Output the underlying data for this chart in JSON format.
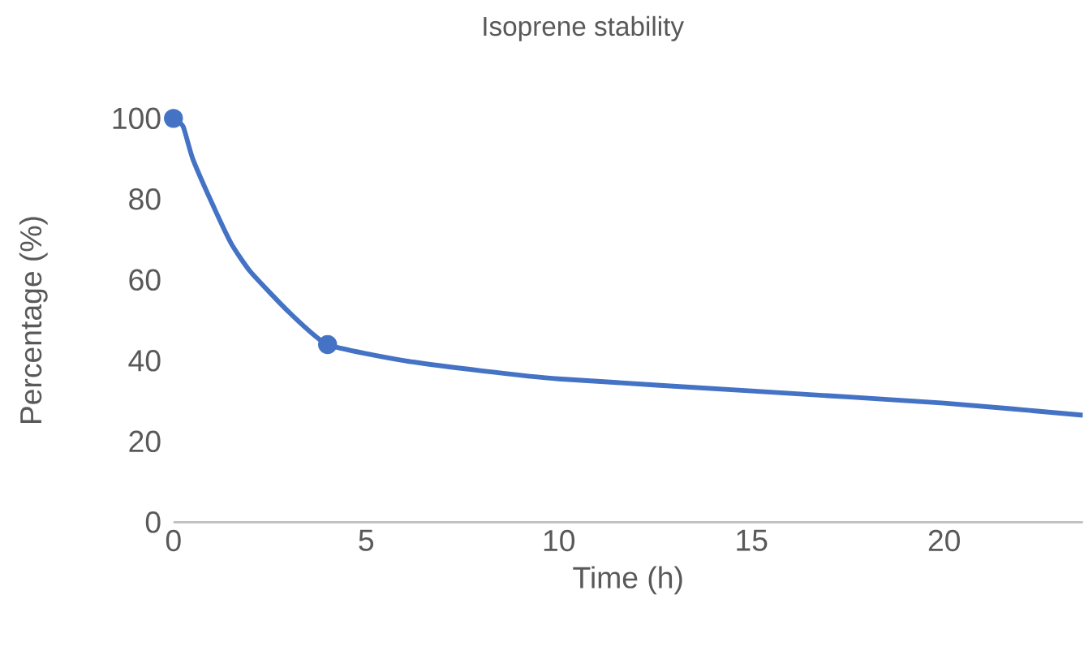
{
  "chart_data": {
    "type": "line",
    "title": "Isoprene stability",
    "xlabel": "Time (h)",
    "ylabel": "Percentage (%)",
    "xlim": [
      0,
      23.6
    ],
    "ylim": [
      0,
      100
    ],
    "xticks": [
      0,
      5,
      10,
      15,
      20
    ],
    "yticks": [
      0,
      20,
      40,
      60,
      80,
      100
    ],
    "grid": false,
    "legend": false,
    "series": [
      {
        "color": "#4472c4",
        "marker": "none",
        "x": [
          0,
          0.25,
          0.5,
          1,
          1.5,
          2,
          3,
          4,
          6,
          8,
          10,
          15,
          20,
          23.6
        ],
        "values": [
          100,
          98,
          90,
          79,
          69,
          62,
          52,
          44,
          40,
          37.5,
          35.5,
          32.5,
          29.5,
          26.5
        ]
      },
      {
        "type": "scatter",
        "color": "#4472c4",
        "marker": "circle",
        "x": [
          0,
          4
        ],
        "values": [
          100,
          44
        ]
      }
    ]
  }
}
